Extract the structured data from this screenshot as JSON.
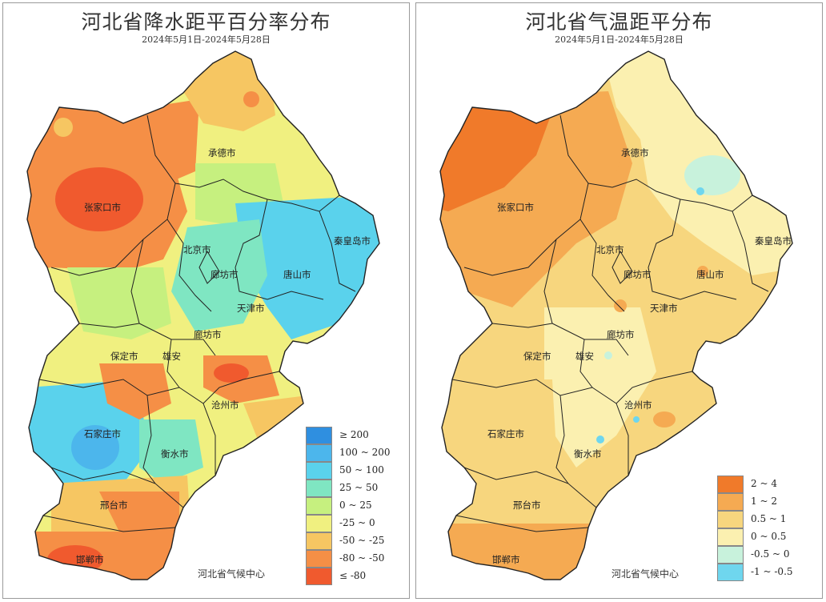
{
  "precip_map": {
    "title": "河北省降水距平百分率分布",
    "subtitle": "2024年5月1日-2024年5月28日",
    "credit": "河北省气候中心",
    "cities": {
      "zhangjiakou": "张家口市",
      "chengde": "承德市",
      "qinhuangdao": "秦皇岛市",
      "beijing": "北京市",
      "langfang_north": "廊坊市",
      "tangshan": "唐山市",
      "tianjin": "天津市",
      "langfang": "廊坊市",
      "baoding": "保定市",
      "xiongan": "雄安",
      "cangzhou": "沧州市",
      "shijiazhuang": "石家庄市",
      "hengshui": "衡水市",
      "xingtai": "邢台市",
      "handan": "邯郸市"
    },
    "legend": [
      {
        "label": "≥ 200",
        "color": "#2f8fe0"
      },
      {
        "label": "100 ~ 200",
        "color": "#4cb6ec"
      },
      {
        "label": "50 ~ 100",
        "color": "#5ad2ec"
      },
      {
        "label": "25 ~ 50",
        "color": "#7fe6c2"
      },
      {
        "label": "0 ~ 25",
        "color": "#c6f07f"
      },
      {
        "label": "-25 ~ 0",
        "color": "#f0f080"
      },
      {
        "label": "-50 ~ -25",
        "color": "#f6c662"
      },
      {
        "label": "-80 ~ -50",
        "color": "#f58f46"
      },
      {
        "label": "≤ -80",
        "color": "#f05a2e"
      }
    ]
  },
  "temp_map": {
    "title": "河北省气温距平分布",
    "subtitle": "2024年5月1日-2024年5月28日",
    "credit": "河北省气候中心",
    "cities": {
      "zhangjiakou": "张家口市",
      "chengde": "承德市",
      "qinhuangdao": "秦皇岛市",
      "beijing": "北京市",
      "langfang_north": "廊坊市",
      "tangshan": "唐山市",
      "tianjin": "天津市",
      "langfang": "廊坊市",
      "baoding": "保定市",
      "xiongan": "雄安",
      "cangzhou": "沧州市",
      "shijiazhuang": "石家庄市",
      "hengshui": "衡水市",
      "xingtai": "邢台市",
      "handan": "邯郸市"
    },
    "legend": [
      {
        "label": "2 ~ 4",
        "color": "#f07a2a"
      },
      {
        "label": "1 ~ 2",
        "color": "#f5aa52"
      },
      {
        "label": "0.5 ~ 1",
        "color": "#f7d67e"
      },
      {
        "label": "0 ~ 0.5",
        "color": "#fbf0b0"
      },
      {
        "label": "-0.5 ~ 0",
        "color": "#c8f2dc"
      },
      {
        "label": "-1 ~ -0.5",
        "color": "#6fd6ee"
      }
    ]
  }
}
